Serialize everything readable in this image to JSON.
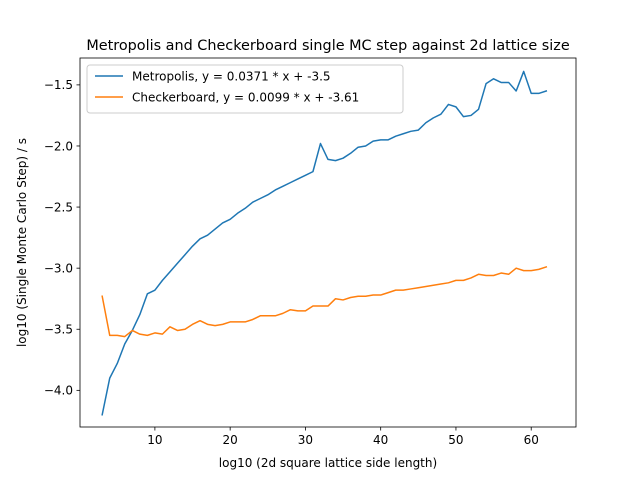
{
  "chart_data": {
    "type": "line",
    "title": "Metropolis and Checkerboard single MC step against 2d lattice size",
    "xlabel": "log10 (2d square lattice side length)",
    "ylabel": "log10 (Single Monte Carlo Step) / s",
    "xlim": [
      0.05,
      65.95
    ],
    "ylim": [
      -4.3,
      -1.28
    ],
    "xticks": [
      10,
      20,
      30,
      40,
      50,
      60
    ],
    "yticks": [
      -4.0,
      -3.5,
      -3.0,
      -2.5,
      -2.0,
      -1.5
    ],
    "xtick_labels": [
      "10",
      "20",
      "30",
      "40",
      "50",
      "60"
    ],
    "ytick_labels": [
      "−4.0",
      "−3.5",
      "−3.0",
      "−2.5",
      "−2.0",
      "−1.5"
    ],
    "grid": false,
    "legend_position": "top-left",
    "series": [
      {
        "name": "Metropolis, y = 0.0371 * x + -3.5",
        "color": "#1f77b4",
        "x": [
          3,
          4,
          5,
          6,
          7,
          8,
          9,
          10,
          11,
          12,
          13,
          14,
          15,
          16,
          17,
          18,
          19,
          20,
          21,
          22,
          23,
          24,
          25,
          26,
          27,
          28,
          29,
          30,
          31,
          32,
          33,
          34,
          35,
          36,
          37,
          38,
          39,
          40,
          41,
          42,
          43,
          44,
          45,
          46,
          47,
          48,
          49,
          50,
          51,
          52,
          53,
          54,
          55,
          56,
          57,
          58,
          59,
          60,
          61,
          62
        ],
        "y": [
          -4.2,
          -3.9,
          -3.78,
          -3.62,
          -3.51,
          -3.38,
          -3.21,
          -3.18,
          -3.1,
          -3.03,
          -2.96,
          -2.89,
          -2.82,
          -2.76,
          -2.73,
          -2.68,
          -2.63,
          -2.6,
          -2.55,
          -2.51,
          -2.46,
          -2.43,
          -2.4,
          -2.36,
          -2.33,
          -2.3,
          -2.27,
          -2.24,
          -2.21,
          -1.98,
          -2.11,
          -2.12,
          -2.1,
          -2.06,
          -2.01,
          -2.0,
          -1.96,
          -1.95,
          -1.95,
          -1.92,
          -1.9,
          -1.88,
          -1.87,
          -1.81,
          -1.77,
          -1.74,
          -1.66,
          -1.68,
          -1.76,
          -1.75,
          -1.7,
          -1.49,
          -1.45,
          -1.48,
          -1.48,
          -1.55,
          -1.39,
          -1.57,
          -1.57,
          -1.55
        ]
      },
      {
        "name": "Checkerboard, y = 0.0099 * x + -3.61",
        "color": "#ff7f0e",
        "x": [
          3,
          4,
          5,
          6,
          7,
          8,
          9,
          10,
          11,
          12,
          13,
          14,
          15,
          16,
          17,
          18,
          19,
          20,
          21,
          22,
          23,
          24,
          25,
          26,
          27,
          28,
          29,
          30,
          31,
          32,
          33,
          34,
          35,
          36,
          37,
          38,
          39,
          40,
          41,
          42,
          43,
          44,
          45,
          46,
          47,
          48,
          49,
          50,
          51,
          52,
          53,
          54,
          55,
          56,
          57,
          58,
          59,
          60,
          61,
          62
        ],
        "y": [
          -3.23,
          -3.55,
          -3.55,
          -3.56,
          -3.51,
          -3.54,
          -3.55,
          -3.53,
          -3.54,
          -3.48,
          -3.51,
          -3.5,
          -3.46,
          -3.43,
          -3.46,
          -3.47,
          -3.46,
          -3.44,
          -3.44,
          -3.44,
          -3.42,
          -3.39,
          -3.39,
          -3.39,
          -3.37,
          -3.34,
          -3.35,
          -3.35,
          -3.31,
          -3.31,
          -3.31,
          -3.25,
          -3.26,
          -3.24,
          -3.23,
          -3.23,
          -3.22,
          -3.22,
          -3.2,
          -3.18,
          -3.18,
          -3.17,
          -3.16,
          -3.15,
          -3.14,
          -3.13,
          -3.12,
          -3.1,
          -3.1,
          -3.08,
          -3.05,
          -3.06,
          -3.06,
          -3.04,
          -3.05,
          -3.0,
          -3.02,
          -3.02,
          -3.01,
          -2.99
        ]
      }
    ]
  }
}
